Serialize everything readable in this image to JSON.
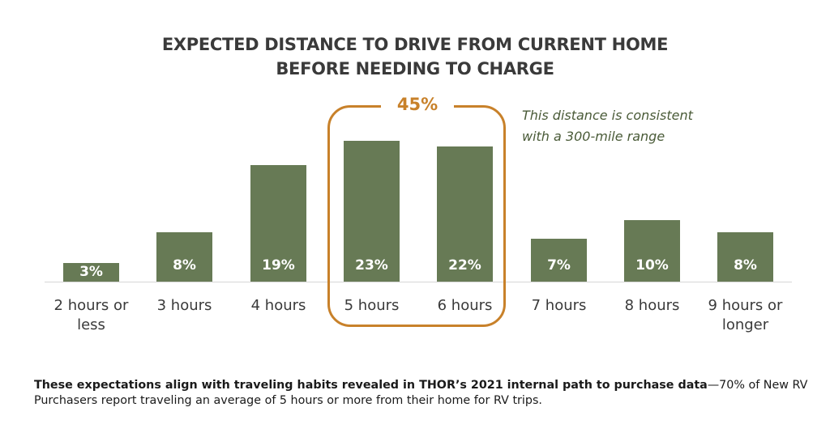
{
  "chart_data": {
    "type": "bar",
    "title": "EXPECTED DISTANCE TO DRIVE FROM CURRENT HOME BEFORE NEEDING TO CHARGE",
    "title_lines": [
      "EXPECTED DISTANCE TO DRIVE FROM CURRENT HOME",
      "BEFORE NEEDING TO CHARGE"
    ],
    "categories": [
      "2 hours or less",
      "3 hours",
      "4 hours",
      "5 hours",
      "6 hours",
      "7 hours",
      "8 hours",
      "9 hours or longer"
    ],
    "category_lines": [
      [
        "2 hours or",
        "less"
      ],
      [
        "3 hours"
      ],
      [
        "4 hours"
      ],
      [
        "5 hours"
      ],
      [
        "6 hours"
      ],
      [
        "7 hours"
      ],
      [
        "8 hours"
      ],
      [
        "9 hours or",
        "longer"
      ]
    ],
    "values": [
      3,
      8,
      19,
      23,
      22,
      7,
      10,
      8
    ],
    "value_labels": [
      "3%",
      "8%",
      "19%",
      "23%",
      "22%",
      "7%",
      "10%",
      "8%"
    ],
    "unit": "%",
    "xlabel": "",
    "ylabel": "",
    "ylim": [
      0,
      25
    ],
    "grid": false,
    "legend": null,
    "bar_color": "#677a55",
    "annotations": [
      {
        "type": "bracket",
        "covers": [
          "5 hours",
          "6 hours"
        ],
        "label": "45%",
        "color": "#c8812a"
      },
      {
        "type": "text",
        "lines": [
          "This distance is consistent",
          "with a 300-mile range"
        ],
        "color": "#4a5b38"
      }
    ]
  },
  "bracket": {
    "label": "45%",
    "color": "#c8812a"
  },
  "annotation": {
    "line1": "This distance is consistent",
    "line2": "with a 300-mile range"
  },
  "footnote": {
    "bold": "These expectations align with traveling habits revealed in THOR’s 2021 internal path to purchase data",
    "regular": "—70% of New RV Purchasers report traveling an average of 5 hours or more from their home for RV trips."
  }
}
